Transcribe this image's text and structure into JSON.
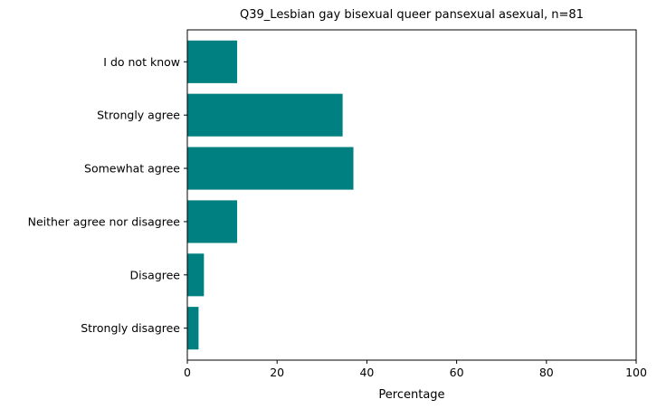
{
  "chart_data": {
    "type": "bar",
    "orientation": "horizontal",
    "title": "Q39_Lesbian gay bisexual queer pansexual asexual, n=81",
    "xlabel": "Percentage",
    "ylabel": "",
    "xlim": [
      0,
      100
    ],
    "xticks": [
      0,
      20,
      40,
      60,
      80,
      100
    ],
    "categories": [
      "Strongly disagree",
      "Disagree",
      "Neither agree nor disagree",
      "Somewhat agree",
      "Strongly agree",
      "I do not know"
    ],
    "values": [
      2.5,
      3.7,
      11.1,
      37.0,
      34.6,
      11.1
    ],
    "bar_color": "#008080",
    "grid": false,
    "legend": "none"
  }
}
